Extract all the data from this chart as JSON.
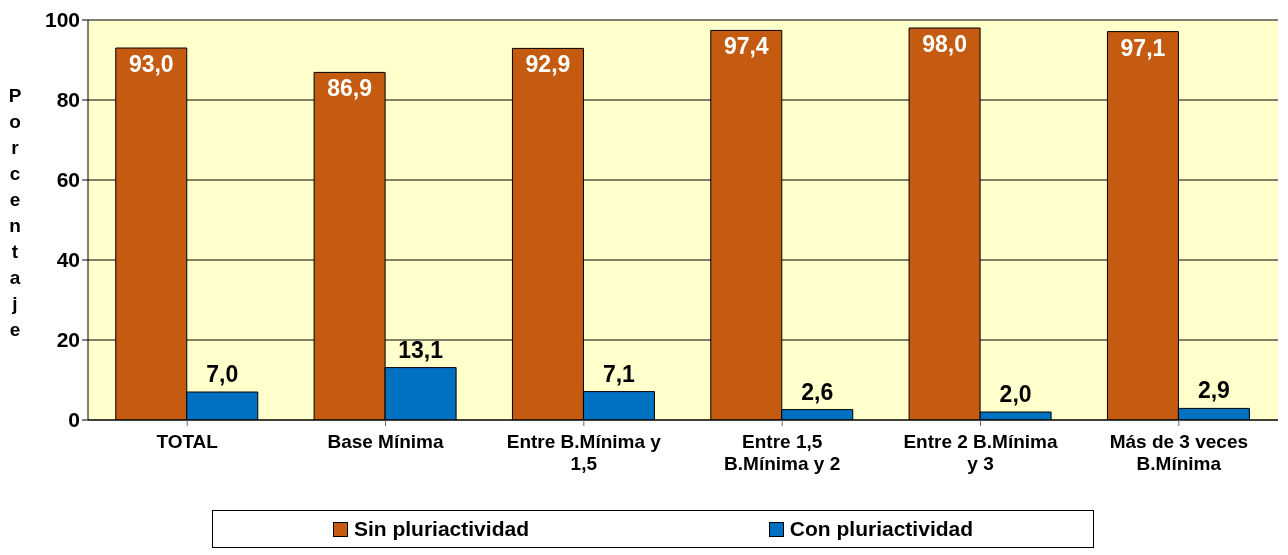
{
  "chart_data": {
    "type": "bar",
    "ylabel": "Porcentaje",
    "categories": [
      "TOTAL",
      "Base Mínima",
      "Entre B.Mínima y 1,5",
      "Entre 1,5 B.Mínima y 2",
      "Entre 2 B.Mínima y 3",
      "Más de 3 veces B.Mínima"
    ],
    "series": [
      {
        "name": "Sin pluriactividad",
        "color": "#c55a11",
        "values": [
          93.0,
          86.9,
          92.9,
          97.4,
          98.0,
          97.1
        ],
        "value_labels": [
          "93,0",
          "86,9",
          "92,9",
          "97,4",
          "98,0",
          "97,1"
        ]
      },
      {
        "name": "Con pluriactividad",
        "color": "#0070c0",
        "values": [
          7.0,
          13.1,
          7.1,
          2.6,
          2.0,
          2.9
        ],
        "value_labels": [
          "7,0",
          "13,1",
          "7,1",
          "2,6",
          "2,0",
          "2,9"
        ]
      }
    ],
    "ylim": [
      0,
      100
    ],
    "yticks": [
      0,
      20,
      40,
      60,
      80,
      100
    ],
    "grid": "y",
    "legend": "bottom"
  }
}
